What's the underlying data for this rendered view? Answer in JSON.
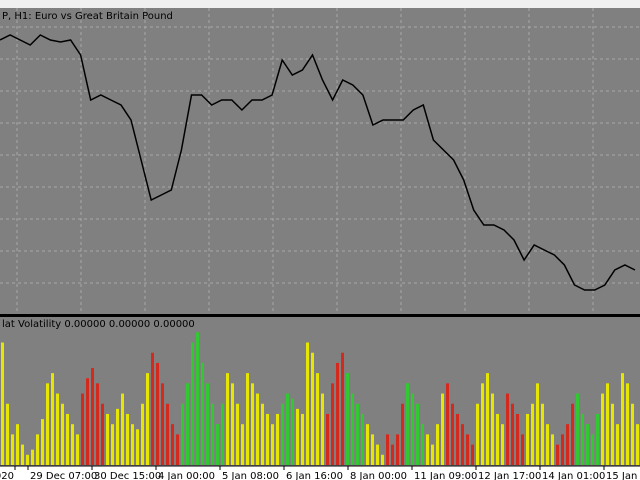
{
  "chart_data": [
    {
      "type": "line",
      "title": "P, H1:  Euro vs Great Britain Pound",
      "color": "#000000",
      "ylim": [
        0,
        305
      ],
      "grid": true,
      "values": [
        273,
        278,
        273,
        268,
        278,
        273,
        271,
        273,
        258,
        213,
        218,
        213,
        208,
        193,
        153,
        113,
        118,
        123,
        163,
        218,
        218,
        208,
        213,
        213,
        203,
        213,
        213,
        218,
        253,
        238,
        243,
        258,
        233,
        213,
        233,
        228,
        218,
        188,
        193,
        193,
        193,
        203,
        208,
        173,
        163,
        153,
        133,
        103,
        88,
        88,
        83,
        73,
        53,
        68,
        63,
        58,
        48,
        28,
        23,
        23,
        28,
        43,
        48,
        43
      ]
    },
    {
      "type": "bar",
      "title": "lat Volatility 0.00000 0.00000 0.00000",
      "ylim": [
        0,
        145
      ],
      "colors": [
        "#e6e600",
        "#d42a1e",
        "#32c832"
      ],
      "values": [
        120,
        60,
        30,
        40,
        20,
        10,
        15,
        30,
        45,
        80,
        90,
        70,
        60,
        50,
        40,
        30,
        70,
        85,
        95,
        80,
        60,
        50,
        40,
        55,
        70,
        50,
        40,
        35,
        60,
        90,
        110,
        100,
        80,
        60,
        40,
        30,
        60,
        80,
        120,
        130,
        100,
        80,
        60,
        40,
        60,
        90,
        80,
        60,
        40,
        90,
        80,
        70,
        60,
        50,
        40,
        50,
        60,
        70,
        65,
        55,
        50,
        120,
        110,
        90,
        70,
        50,
        80,
        100,
        110,
        90,
        70,
        60,
        50,
        40,
        30,
        20,
        10,
        30,
        20,
        30,
        60,
        80,
        70,
        60,
        40,
        30,
        20,
        40,
        70,
        80,
        60,
        50,
        40,
        30,
        20,
        60,
        80,
        90,
        70,
        50,
        40,
        70,
        60,
        50,
        30,
        50,
        60,
        80,
        60,
        40,
        30,
        20,
        30,
        40,
        60,
        70,
        50,
        40,
        30,
        50,
        70,
        80,
        60,
        40,
        90,
        80,
        60,
        40
      ],
      "color_index": [
        0,
        0,
        0,
        0,
        0,
        0,
        0,
        0,
        0,
        0,
        0,
        0,
        0,
        0,
        0,
        0,
        1,
        1,
        1,
        1,
        1,
        0,
        0,
        0,
        0,
        0,
        0,
        0,
        0,
        0,
        1,
        1,
        1,
        1,
        1,
        1,
        2,
        2,
        2,
        2,
        2,
        2,
        2,
        2,
        2,
        0,
        0,
        0,
        0,
        0,
        0,
        0,
        0,
        0,
        0,
        0,
        2,
        2,
        2,
        0,
        0,
        0,
        0,
        0,
        0,
        1,
        1,
        1,
        1,
        2,
        2,
        2,
        2,
        0,
        0,
        0,
        0,
        1,
        1,
        1,
        1,
        2,
        2,
        2,
        2,
        0,
        0,
        0,
        0,
        1,
        1,
        1,
        1,
        1,
        1,
        0,
        0,
        0,
        0,
        0,
        0,
        1,
        1,
        1,
        1,
        0,
        0,
        0,
        0,
        0,
        0,
        1,
        1,
        1,
        1,
        2,
        2,
        2,
        2,
        2,
        0,
        0,
        0,
        0,
        0,
        0,
        0,
        0
      ]
    }
  ],
  "time_labels": [
    "020",
    "29 Dec 07:00",
    "30 Dec 15:00",
    "4 Jan 00:00",
    "5 Jan 08:00",
    "6 Jan 16:00",
    "8 Jan 00:00",
    "11 Jan 09:00",
    "12 Jan 17:00",
    "14 Jan 01:00",
    "15 Jan 0"
  ]
}
